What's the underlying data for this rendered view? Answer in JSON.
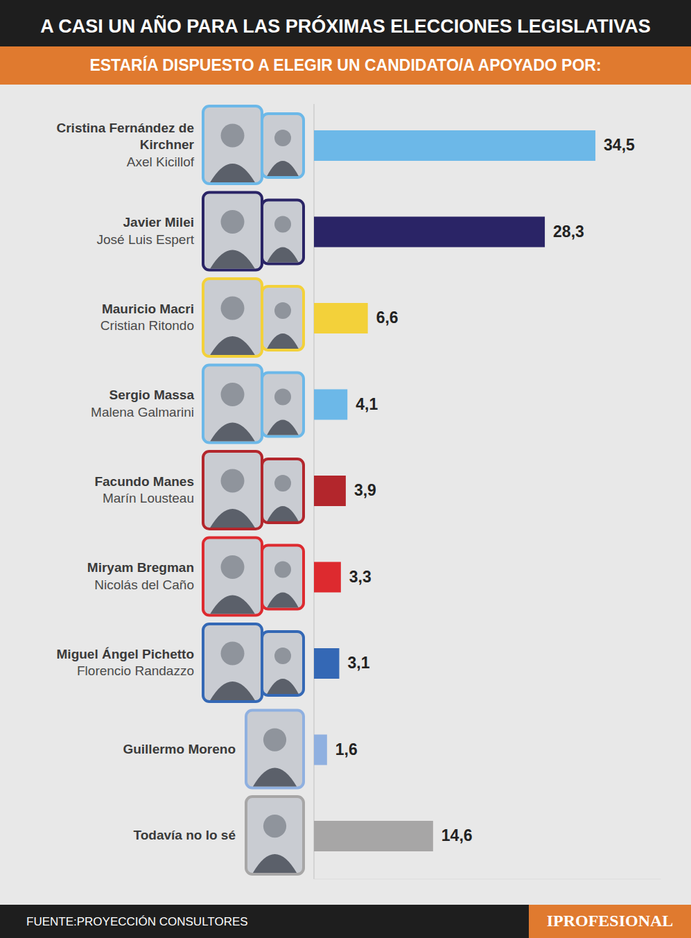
{
  "chart_data": {
    "type": "bar",
    "orientation": "horizontal",
    "title": "A CASI UN AÑO PARA LAS PRÓXIMAS ELECCIONES LEGISLATIVAS",
    "subtitle": "ESTARÍA DISPUESTO A ELEGIR UN CANDIDATO/A APOYADO POR:",
    "categories": [
      "Cristina Fernández de Kirchner",
      "Javier Milei",
      "Mauricio Macri",
      "Sergio Massa",
      "Facundo Manes",
      "Miryam Bregman",
      "Miguel Ángel Pichetto",
      "Guillermo Moreno",
      "Todavía no lo sé"
    ],
    "subcategories": [
      "Axel Kicillof",
      "José Luis Espert",
      "Cristian Ritondo",
      "Malena Galmarini",
      "Marín Lousteau",
      "Nicolás del Caño",
      "Florencio Randazzo",
      null,
      null
    ],
    "values": [
      34.5,
      28.3,
      6.6,
      4.1,
      3.9,
      3.3,
      3.1,
      1.6,
      14.6
    ],
    "value_labels": [
      "34,5",
      "28,3",
      "6,6",
      "4,1",
      "3,9",
      "3,3",
      "3,1",
      "1,6",
      "14,6"
    ],
    "colors": [
      "#6cb8e8",
      "#2a2466",
      "#f3d13a",
      "#6cb8e8",
      "#b3262c",
      "#dd2a2f",
      "#3468b5",
      "#8fb0e0",
      "#a7a6a6"
    ],
    "xlim": [
      0,
      42.5
    ],
    "data_labels": true,
    "tick_labels": false,
    "grid": false,
    "source": "FUENTE:PROYECCIÓN CONSULTORES",
    "brand": "IPROFESIONAL"
  }
}
